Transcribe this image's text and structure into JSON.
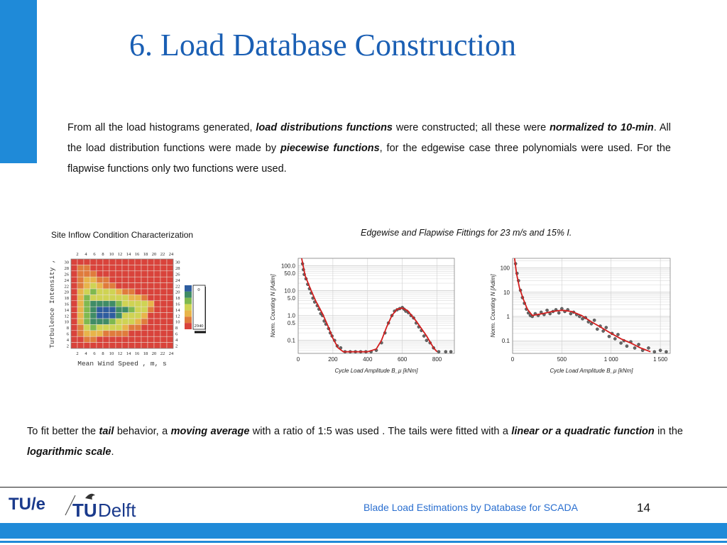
{
  "slide": {
    "title": "6. Load Database Construction",
    "page_number": "14",
    "footer": "Blade Load Estimations by Database for SCADA",
    "logos": {
      "tue": "TU/e",
      "delft_tu": "TU",
      "delft": "Delft"
    }
  },
  "intro": {
    "s1": "From all the load histograms generated, ",
    "e1": "load distributions functions",
    "s2": " were constructed; all these were ",
    "e2": "normalized to 10-min",
    "s3": ". All the load distribution functions  were made by ",
    "e3": "piecewise functions",
    "s4": ", for the edgewise case three polynomials were used. For the flapwise functions only two functions were used."
  },
  "conclusion": {
    "s1": "To fit better the ",
    "e1": "tail",
    "s2": " behavior, a ",
    "e2": "moving average",
    "s3": " with a ratio of 1:5 was used . The tails were fitted with a ",
    "e3": "linear or a quadratic function",
    "s4": "  in the ",
    "e4": "logarithmic scale",
    "s5": "."
  },
  "captions": {
    "left": "Site Inflow Condition Characterization",
    "right": "Edgewise and Flapwise Fittings for 23 m/s and 15% I."
  },
  "chart_data": [
    {
      "type": "heatmap",
      "xlabel": "Mean Wind Speed , m, s",
      "ylabel": "Turbulence Intensity ,",
      "x_ticks": [
        "2",
        "4",
        "6",
        "8",
        "10",
        "12",
        "14",
        "16",
        "18",
        "20",
        "22",
        "24"
      ],
      "y_ticks": [
        "30",
        "28",
        "26",
        "24",
        "22",
        "20",
        "18",
        "16",
        "14",
        "12",
        "10",
        "8",
        "6",
        "4",
        "2"
      ],
      "colorbar_ticks": [
        "0",
        "2940"
      ],
      "colors": [
        "#d9433b",
        "#e07b3c",
        "#e8b44a",
        "#cfd353",
        "#7fb94f",
        "#3f8c66",
        "#2e5d9f"
      ],
      "grid_values": [
        [
          0,
          0,
          0,
          0,
          0,
          0,
          0,
          0,
          0,
          0,
          0,
          0,
          0,
          0,
          0,
          0
        ],
        [
          0,
          1,
          1,
          0,
          0,
          0,
          0,
          0,
          0,
          0,
          0,
          0,
          0,
          0,
          0,
          0
        ],
        [
          0,
          1,
          1,
          1,
          0,
          0,
          0,
          0,
          0,
          0,
          0,
          0,
          0,
          0,
          0,
          0
        ],
        [
          0,
          1,
          2,
          2,
          1,
          1,
          0,
          0,
          0,
          0,
          0,
          0,
          0,
          0,
          0,
          0
        ],
        [
          0,
          1,
          2,
          3,
          2,
          1,
          1,
          0,
          0,
          0,
          0,
          0,
          0,
          0,
          0,
          0
        ],
        [
          0,
          2,
          3,
          4,
          3,
          3,
          3,
          2,
          1,
          1,
          0,
          0,
          0,
          0,
          0,
          0
        ],
        [
          0,
          2,
          4,
          3,
          3,
          3,
          3,
          3,
          3,
          2,
          2,
          1,
          0,
          0,
          0,
          0
        ],
        [
          0,
          2,
          4,
          5,
          5,
          5,
          5,
          4,
          3,
          3,
          3,
          3,
          2,
          0,
          0,
          0
        ],
        [
          0,
          2,
          4,
          5,
          6,
          6,
          6,
          5,
          5,
          4,
          3,
          3,
          1,
          0,
          0,
          0
        ],
        [
          0,
          2,
          4,
          5,
          6,
          6,
          6,
          5,
          3,
          3,
          3,
          2,
          0,
          0,
          0,
          0
        ],
        [
          0,
          2,
          4,
          5,
          5,
          5,
          4,
          3,
          3,
          3,
          2,
          1,
          0,
          0,
          0,
          0
        ],
        [
          0,
          1,
          3,
          4,
          3,
          3,
          3,
          3,
          2,
          1,
          1,
          0,
          0,
          0,
          0,
          0
        ],
        [
          0,
          1,
          2,
          2,
          2,
          1,
          1,
          1,
          1,
          0,
          0,
          0,
          0,
          0,
          0,
          0
        ],
        [
          0,
          0,
          1,
          1,
          0,
          0,
          0,
          0,
          0,
          0,
          0,
          0,
          0,
          0,
          0,
          0
        ],
        [
          0,
          0,
          0,
          0,
          0,
          0,
          0,
          0,
          0,
          0,
          0,
          0,
          0,
          0,
          0,
          0
        ]
      ]
    },
    {
      "type": "scatter",
      "name": "edgewise",
      "xlabel": "Cycle Load Amplitude  B_μ  [kNm]",
      "ylabel": "Norm. Counting  N  [Adim]",
      "x_ticks": [
        0,
        200,
        400,
        600,
        800
      ],
      "y_ticks": [
        {
          "v": 100,
          "label": "100.0"
        },
        {
          "v": 50,
          "label": "50.0"
        },
        {
          "v": 10,
          "label": "10.0"
        },
        {
          "v": 5,
          "label": "5.0"
        },
        {
          "v": 1,
          "label": "1.0"
        },
        {
          "v": 0.5,
          "label": "0.5"
        },
        {
          "v": 0.1,
          "label": "0.1"
        }
      ],
      "xlim": [
        0,
        900
      ],
      "ylim_log": [
        0.03,
        200
      ],
      "fit_color": "#d21e1e",
      "fit": [
        [
          20,
          200
        ],
        [
          40,
          40
        ],
        [
          70,
          12
        ],
        [
          100,
          4
        ],
        [
          140,
          1.2
        ],
        [
          170,
          0.4
        ],
        [
          200,
          0.12
        ],
        [
          230,
          0.05
        ],
        [
          260,
          0.035
        ],
        [
          300,
          0.035
        ],
        [
          400,
          0.035
        ],
        [
          450,
          0.045
        ],
        [
          480,
          0.1
        ],
        [
          510,
          0.35
        ],
        [
          540,
          1
        ],
        [
          570,
          1.8
        ],
        [
          600,
          2
        ],
        [
          630,
          1.6
        ],
        [
          680,
          0.6
        ],
        [
          740,
          0.15
        ],
        [
          780,
          0.05
        ],
        [
          800,
          0.035
        ]
      ],
      "points": [
        [
          25,
          120
        ],
        [
          30,
          70
        ],
        [
          35,
          45
        ],
        [
          45,
          30
        ],
        [
          55,
          18
        ],
        [
          65,
          12
        ],
        [
          75,
          8
        ],
        [
          85,
          5
        ],
        [
          95,
          3.5
        ],
        [
          110,
          2.5
        ],
        [
          120,
          1.8
        ],
        [
          130,
          1.2
        ],
        [
          140,
          1
        ],
        [
          150,
          0.6
        ],
        [
          160,
          0.45
        ],
        [
          175,
          0.3
        ],
        [
          185,
          0.2
        ],
        [
          195,
          0.15
        ],
        [
          210,
          0.1
        ],
        [
          225,
          0.06
        ],
        [
          245,
          0.05
        ],
        [
          270,
          0.035
        ],
        [
          300,
          0.035
        ],
        [
          330,
          0.035
        ],
        [
          360,
          0.035
        ],
        [
          390,
          0.035
        ],
        [
          420,
          0.035
        ],
        [
          450,
          0.04
        ],
        [
          480,
          0.08
        ],
        [
          500,
          0.2
        ],
        [
          520,
          0.5
        ],
        [
          540,
          1
        ],
        [
          555,
          1.5
        ],
        [
          570,
          1.7
        ],
        [
          585,
          1.9
        ],
        [
          600,
          2.1
        ],
        [
          610,
          1.8
        ],
        [
          620,
          1.5
        ],
        [
          635,
          1.3
        ],
        [
          650,
          1
        ],
        [
          665,
          0.8
        ],
        [
          680,
          0.5
        ],
        [
          695,
          0.35
        ],
        [
          710,
          0.25
        ],
        [
          725,
          0.15
        ],
        [
          740,
          0.1
        ],
        [
          760,
          0.08
        ],
        [
          780,
          0.05
        ],
        [
          810,
          0.035
        ],
        [
          850,
          0.035
        ],
        [
          880,
          0.035
        ]
      ]
    },
    {
      "type": "scatter",
      "name": "flapwise",
      "xlabel": "Cycle Load Amplitude  B_μ  [kNm]",
      "ylabel": "Norm. Counting  N  [Adim]",
      "x_ticks": [
        {
          "v": 0,
          "label": "0"
        },
        {
          "v": 500,
          "label": "500"
        },
        {
          "v": 1000,
          "label": "1 000"
        },
        {
          "v": 1500,
          "label": "1 500"
        }
      ],
      "y_ticks": [
        {
          "v": 100,
          "label": "100"
        },
        {
          "v": 10,
          "label": "10"
        },
        {
          "v": 1,
          "label": "1"
        },
        {
          "v": 0.1,
          "label": "0.1"
        }
      ],
      "xlim": [
        0,
        1600
      ],
      "ylim_log": [
        0.03,
        250
      ],
      "fit_color": "#d21e1e",
      "fit": [
        [
          20,
          250
        ],
        [
          40,
          60
        ],
        [
          70,
          15
        ],
        [
          110,
          5
        ],
        [
          150,
          2
        ],
        [
          200,
          1.1
        ],
        [
          300,
          1.3
        ],
        [
          400,
          1.6
        ],
        [
          500,
          1.8
        ],
        [
          600,
          1.6
        ],
        [
          700,
          1.1
        ],
        [
          800,
          0.6
        ],
        [
          900,
          0.35
        ],
        [
          1000,
          0.2
        ],
        [
          1100,
          0.12
        ],
        [
          1200,
          0.08
        ],
        [
          1300,
          0.05
        ],
        [
          1400,
          0.035
        ]
      ],
      "points": [
        [
          30,
          150
        ],
        [
          45,
          60
        ],
        [
          60,
          30
        ],
        [
          80,
          12
        ],
        [
          100,
          6
        ],
        [
          120,
          3.5
        ],
        [
          140,
          2
        ],
        [
          160,
          1.4
        ],
        [
          180,
          1.1
        ],
        [
          200,
          1
        ],
        [
          230,
          1.3
        ],
        [
          260,
          1.1
        ],
        [
          290,
          1.5
        ],
        [
          320,
          1.2
        ],
        [
          350,
          1.8
        ],
        [
          380,
          1.3
        ],
        [
          410,
          1.6
        ],
        [
          440,
          1.9
        ],
        [
          470,
          1.4
        ],
        [
          500,
          2.1
        ],
        [
          530,
          1.6
        ],
        [
          560,
          1.9
        ],
        [
          590,
          1.3
        ],
        [
          620,
          1.5
        ],
        [
          650,
          1.2
        ],
        [
          680,
          1
        ],
        [
          710,
          0.8
        ],
        [
          740,
          0.9
        ],
        [
          770,
          0.6
        ],
        [
          800,
          0.5
        ],
        [
          830,
          0.7
        ],
        [
          860,
          0.3
        ],
        [
          890,
          0.4
        ],
        [
          920,
          0.25
        ],
        [
          950,
          0.35
        ],
        [
          980,
          0.15
        ],
        [
          1010,
          0.2
        ],
        [
          1040,
          0.12
        ],
        [
          1070,
          0.18
        ],
        [
          1100,
          0.08
        ],
        [
          1130,
          0.1
        ],
        [
          1160,
          0.06
        ],
        [
          1200,
          0.09
        ],
        [
          1240,
          0.05
        ],
        [
          1280,
          0.07
        ],
        [
          1320,
          0.04
        ],
        [
          1380,
          0.05
        ],
        [
          1440,
          0.035
        ],
        [
          1500,
          0.04
        ],
        [
          1560,
          0.035
        ]
      ]
    }
  ]
}
